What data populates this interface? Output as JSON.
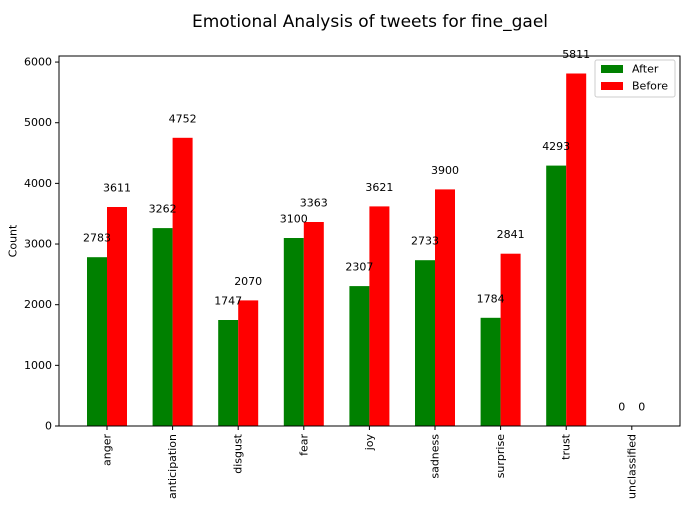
{
  "chart_data": {
    "type": "bar",
    "title": "Emotional Analysis of tweets for fine_gael",
    "xlabel": "",
    "ylabel": "Count",
    "categories": [
      "anger",
      "anticipation",
      "disgust",
      "fear",
      "joy",
      "sadness",
      "surprise",
      "trust",
      "unclassified"
    ],
    "series": [
      {
        "name": "After",
        "color": "#008000",
        "values": [
          2783,
          3262,
          1747,
          3100,
          2307,
          2733,
          1784,
          4293,
          0
        ]
      },
      {
        "name": "Before",
        "color": "#ff0000",
        "values": [
          3611,
          4752,
          2070,
          3363,
          3621,
          3900,
          2841,
          5811,
          0
        ]
      }
    ],
    "ylim": [
      0,
      6100
    ],
    "yticks": [
      0,
      1000,
      2000,
      3000,
      4000,
      5000,
      6000
    ],
    "grid": false,
    "legend_position": "top-right"
  }
}
